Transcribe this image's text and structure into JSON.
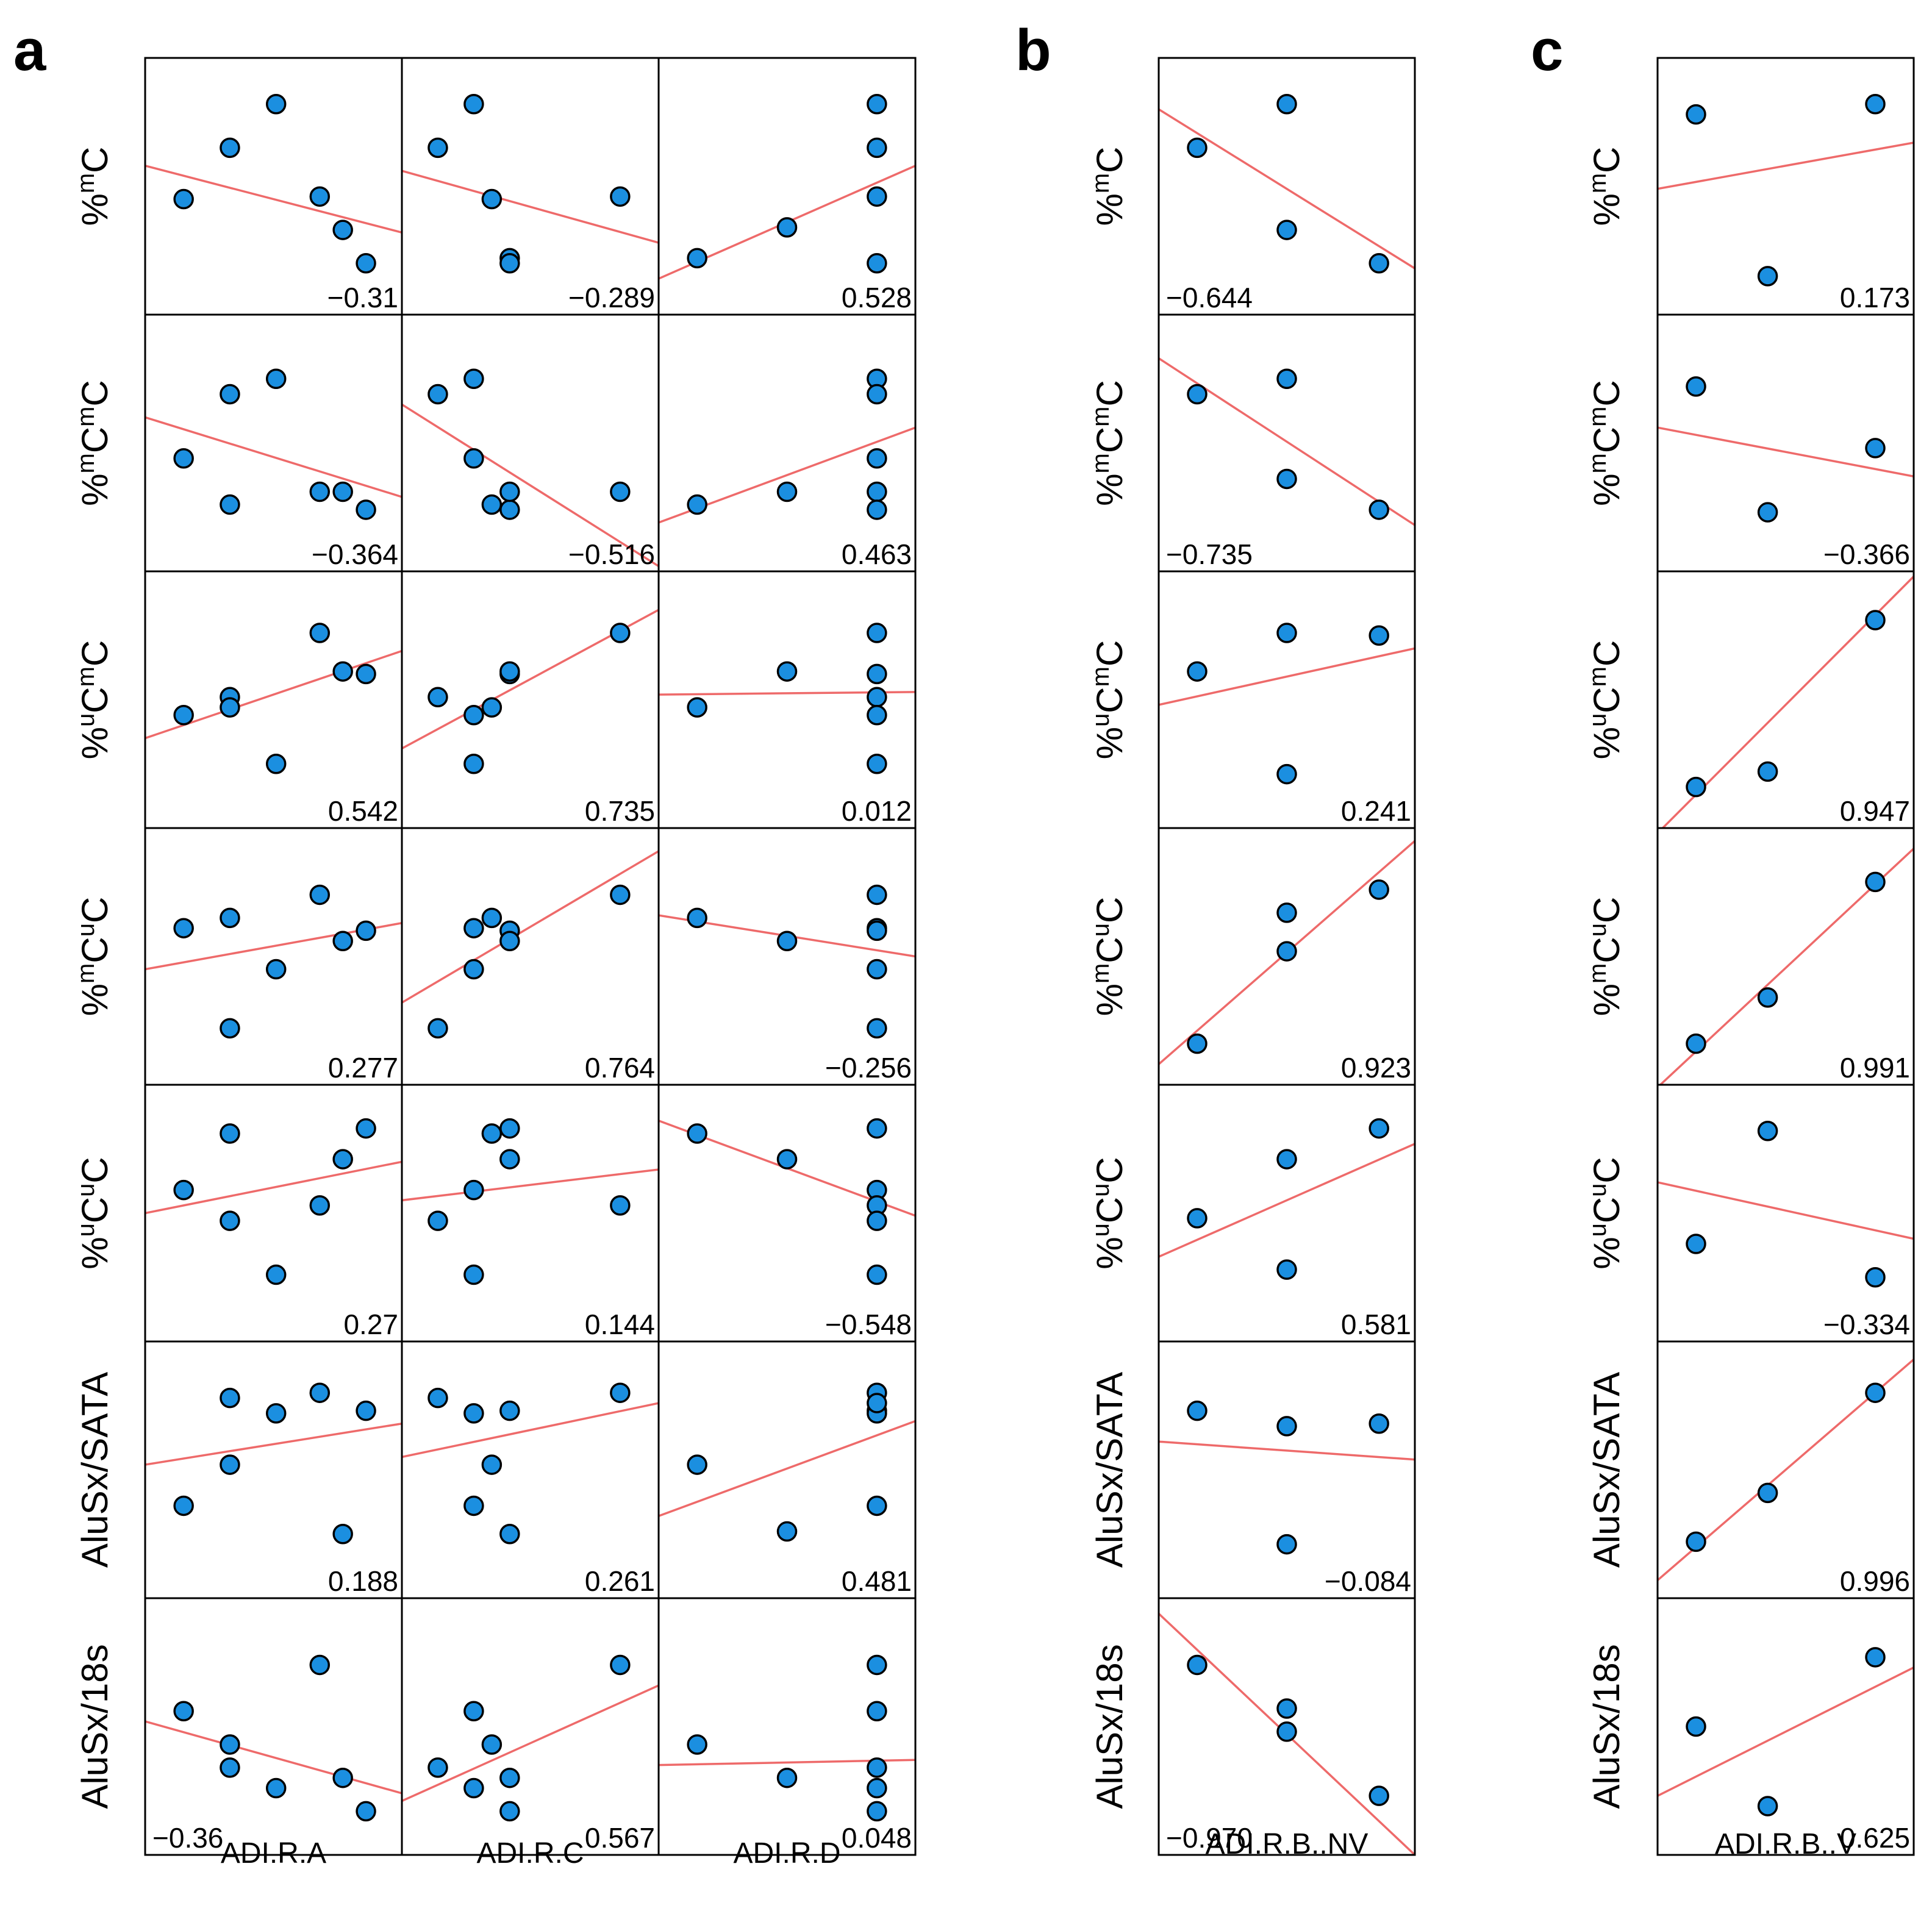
{
  "panels": [
    {
      "letter": "a",
      "columns": [
        "ADI.R.A",
        "ADI.R.C",
        "ADI.R.D"
      ]
    },
    {
      "letter": "b",
      "columns": [
        "ADI.R.B..NV"
      ]
    },
    {
      "letter": "c",
      "columns": [
        "ADI.R.B..V"
      ]
    }
  ],
  "rows": [
    {
      "base": [
        "%",
        "m",
        "C"
      ]
    },
    {
      "base": [
        "%",
        "m",
        "C",
        "m",
        "C"
      ]
    },
    {
      "base": [
        "%",
        "u",
        "C",
        "m",
        "C"
      ]
    },
    {
      "base": [
        "%",
        "m",
        "C",
        "u",
        "C"
      ]
    },
    {
      "base": [
        "%",
        "u",
        "C",
        "u",
        "C"
      ]
    },
    {
      "base": [
        "AluSx/SATA"
      ]
    },
    {
      "base": [
        "AluSx/18s"
      ]
    }
  ],
  "chart_data": {
    "type": "scatter",
    "description_units": "normalized axes 0-1 within each cell",
    "colors": {
      "point": "#1b8fe0",
      "fit_line": "#ee6a6a",
      "frame": "#000000"
    },
    "xlim": [
      0,
      1
    ],
    "ylim": [
      0,
      1
    ],
    "cells": [
      {
        "panel": 0,
        "col": 0,
        "row": 0,
        "corr": "−0.31",
        "corr_pos": "right",
        "x": [
          0.15,
          0.33,
          0.51,
          0.68,
          0.77,
          0.86
        ],
        "y": [
          0.45,
          0.65,
          0.82,
          0.46,
          0.33,
          0.2
        ],
        "line": [
          0.58,
          0.32
        ]
      },
      {
        "panel": 0,
        "col": 1,
        "row": 0,
        "corr": "−0.289",
        "corr_pos": "right",
        "x": [
          0.14,
          0.28,
          0.35,
          0.42,
          0.42,
          0.85
        ],
        "y": [
          0.65,
          0.82,
          0.45,
          0.22,
          0.2,
          0.46
        ],
        "line": [
          0.56,
          0.28
        ]
      },
      {
        "panel": 0,
        "col": 2,
        "row": 0,
        "corr": "0.528",
        "corr_pos": "right",
        "x": [
          0.15,
          0.5,
          0.85,
          0.85,
          0.85,
          0.85
        ],
        "y": [
          0.22,
          0.34,
          0.82,
          0.65,
          0.46,
          0.2
        ],
        "line": [
          0.14,
          0.58
        ]
      },
      {
        "panel": 0,
        "col": 0,
        "row": 1,
        "corr": "−0.364",
        "corr_pos": "right",
        "x": [
          0.15,
          0.33,
          0.51,
          0.68,
          0.77,
          0.86,
          0.33
        ],
        "y": [
          0.44,
          0.69,
          0.75,
          0.31,
          0.31,
          0.24,
          0.26
        ],
        "line": [
          0.6,
          0.29
        ]
      },
      {
        "panel": 0,
        "col": 1,
        "row": 1,
        "corr": "−0.516",
        "corr_pos": "right",
        "x": [
          0.14,
          0.28,
          0.28,
          0.35,
          0.42,
          0.42,
          0.85
        ],
        "y": [
          0.69,
          0.75,
          0.44,
          0.26,
          0.24,
          0.31,
          0.31
        ],
        "line": [
          0.65,
          0.02
        ]
      },
      {
        "panel": 0,
        "col": 2,
        "row": 1,
        "corr": "0.463",
        "corr_pos": "right",
        "x": [
          0.15,
          0.5,
          0.85,
          0.85,
          0.85,
          0.85,
          0.85
        ],
        "y": [
          0.26,
          0.31,
          0.75,
          0.69,
          0.44,
          0.31,
          0.24
        ],
        "line": [
          0.19,
          0.56
        ]
      },
      {
        "panel": 0,
        "col": 0,
        "row": 2,
        "corr": "0.542",
        "corr_pos": "right",
        "x": [
          0.15,
          0.33,
          0.33,
          0.51,
          0.68,
          0.77,
          0.86
        ],
        "y": [
          0.44,
          0.51,
          0.47,
          0.25,
          0.76,
          0.61,
          0.6
        ],
        "line": [
          0.35,
          0.69
        ]
      },
      {
        "panel": 0,
        "col": 1,
        "row": 2,
        "corr": "0.735",
        "corr_pos": "right",
        "x": [
          0.14,
          0.28,
          0.28,
          0.35,
          0.42,
          0.42,
          0.85
        ],
        "y": [
          0.51,
          0.44,
          0.25,
          0.47,
          0.6,
          0.61,
          0.76
        ],
        "line": [
          0.31,
          0.85
        ]
      },
      {
        "panel": 0,
        "col": 2,
        "row": 2,
        "corr": "0.012",
        "corr_pos": "right",
        "x": [
          0.15,
          0.5,
          0.85,
          0.85,
          0.85,
          0.85,
          0.85
        ],
        "y": [
          0.47,
          0.61,
          0.76,
          0.6,
          0.51,
          0.44,
          0.25
        ],
        "line": [
          0.52,
          0.53
        ]
      },
      {
        "panel": 0,
        "col": 0,
        "row": 3,
        "corr": "0.277",
        "corr_pos": "right",
        "x": [
          0.15,
          0.33,
          0.33,
          0.51,
          0.68,
          0.77,
          0.86
        ],
        "y": [
          0.61,
          0.65,
          0.22,
          0.45,
          0.74,
          0.56,
          0.6
        ],
        "line": [
          0.45,
          0.63
        ]
      },
      {
        "panel": 0,
        "col": 1,
        "row": 3,
        "corr": "0.764",
        "corr_pos": "right",
        "x": [
          0.14,
          0.28,
          0.28,
          0.35,
          0.42,
          0.42,
          0.85
        ],
        "y": [
          0.22,
          0.61,
          0.45,
          0.65,
          0.6,
          0.56,
          0.74
        ],
        "line": [
          0.32,
          0.91
        ]
      },
      {
        "panel": 0,
        "col": 2,
        "row": 3,
        "corr": "−0.256",
        "corr_pos": "right",
        "x": [
          0.15,
          0.5,
          0.85,
          0.85,
          0.85,
          0.85,
          0.85
        ],
        "y": [
          0.65,
          0.56,
          0.74,
          0.61,
          0.6,
          0.45,
          0.22
        ],
        "line": [
          0.66,
          0.5
        ]
      },
      {
        "panel": 0,
        "col": 0,
        "row": 4,
        "corr": "0.27",
        "corr_pos": "right",
        "x": [
          0.15,
          0.33,
          0.33,
          0.51,
          0.68,
          0.77,
          0.86
        ],
        "y": [
          0.59,
          0.81,
          0.47,
          0.26,
          0.53,
          0.71,
          0.83
        ],
        "line": [
          0.5,
          0.7
        ]
      },
      {
        "panel": 0,
        "col": 1,
        "row": 4,
        "corr": "0.144",
        "corr_pos": "right",
        "x": [
          0.14,
          0.28,
          0.28,
          0.35,
          0.42,
          0.42,
          0.85
        ],
        "y": [
          0.47,
          0.59,
          0.26,
          0.81,
          0.83,
          0.71,
          0.53
        ],
        "line": [
          0.55,
          0.67
        ]
      },
      {
        "panel": 0,
        "col": 2,
        "row": 4,
        "corr": "−0.548",
        "corr_pos": "right",
        "x": [
          0.15,
          0.5,
          0.85,
          0.85,
          0.85,
          0.85,
          0.85
        ],
        "y": [
          0.81,
          0.71,
          0.83,
          0.59,
          0.53,
          0.47,
          0.26
        ],
        "line": [
          0.86,
          0.49
        ]
      },
      {
        "panel": 0,
        "col": 0,
        "row": 5,
        "corr": "0.188",
        "corr_pos": "right",
        "x": [
          0.15,
          0.33,
          0.33,
          0.51,
          0.68,
          0.77,
          0.86
        ],
        "y": [
          0.36,
          0.52,
          0.78,
          0.72,
          0.8,
          0.25,
          0.73
        ],
        "line": [
          0.52,
          0.68
        ]
      },
      {
        "panel": 0,
        "col": 1,
        "row": 5,
        "corr": "0.261",
        "corr_pos": "right",
        "x": [
          0.14,
          0.28,
          0.28,
          0.35,
          0.42,
          0.42,
          0.85
        ],
        "y": [
          0.78,
          0.72,
          0.36,
          0.52,
          0.25,
          0.73,
          0.8
        ],
        "line": [
          0.55,
          0.76
        ]
      },
      {
        "panel": 0,
        "col": 2,
        "row": 5,
        "corr": "0.481",
        "corr_pos": "right",
        "x": [
          0.15,
          0.5,
          0.85,
          0.85,
          0.85,
          0.85,
          0.85
        ],
        "y": [
          0.52,
          0.26,
          0.8,
          0.73,
          0.72,
          0.36,
          0.76
        ],
        "line": [
          0.32,
          0.69
        ]
      },
      {
        "panel": 0,
        "col": 0,
        "row": 6,
        "corr": "−0.36",
        "corr_pos": "left",
        "x": [
          0.15,
          0.33,
          0.33,
          0.51,
          0.68,
          0.77,
          0.86
        ],
        "y": [
          0.56,
          0.43,
          0.34,
          0.26,
          0.74,
          0.3,
          0.17
        ],
        "line": [
          0.52,
          0.24
        ]
      },
      {
        "panel": 0,
        "col": 1,
        "row": 6,
        "corr": "0.567",
        "corr_pos": "right",
        "x": [
          0.14,
          0.28,
          0.28,
          0.35,
          0.42,
          0.42,
          0.85
        ],
        "y": [
          0.34,
          0.56,
          0.26,
          0.43,
          0.3,
          0.17,
          0.74
        ],
        "line": [
          0.21,
          0.66
        ]
      },
      {
        "panel": 0,
        "col": 2,
        "row": 6,
        "corr": "0.048",
        "corr_pos": "right",
        "x": [
          0.15,
          0.5,
          0.85,
          0.85,
          0.85,
          0.85,
          0.85
        ],
        "y": [
          0.43,
          0.3,
          0.74,
          0.56,
          0.34,
          0.26,
          0.17
        ],
        "line": [
          0.35,
          0.37
        ]
      },
      {
        "panel": 1,
        "col": 0,
        "row": 0,
        "corr": "−0.644",
        "corr_pos": "left",
        "x": [
          0.15,
          0.5,
          0.5,
          0.86
        ],
        "y": [
          0.65,
          0.82,
          0.33,
          0.2
        ],
        "line": [
          0.8,
          0.18
        ]
      },
      {
        "panel": 1,
        "col": 0,
        "row": 1,
        "corr": "−0.735",
        "corr_pos": "left",
        "x": [
          0.15,
          0.5,
          0.5,
          0.86
        ],
        "y": [
          0.69,
          0.75,
          0.36,
          0.24
        ],
        "line": [
          0.83,
          0.18
        ]
      },
      {
        "panel": 1,
        "col": 0,
        "row": 2,
        "corr": "0.241",
        "corr_pos": "right",
        "x": [
          0.15,
          0.5,
          0.5,
          0.86
        ],
        "y": [
          0.61,
          0.76,
          0.21,
          0.75
        ],
        "line": [
          0.48,
          0.7
        ]
      },
      {
        "panel": 1,
        "col": 0,
        "row": 3,
        "corr": "0.923",
        "corr_pos": "right",
        "x": [
          0.15,
          0.5,
          0.5,
          0.86
        ],
        "y": [
          0.16,
          0.67,
          0.52,
          0.76
        ],
        "line": [
          0.08,
          0.95
        ]
      },
      {
        "panel": 1,
        "col": 0,
        "row": 4,
        "corr": "0.581",
        "corr_pos": "right",
        "x": [
          0.15,
          0.5,
          0.5,
          0.86
        ],
        "y": [
          0.48,
          0.71,
          0.28,
          0.83
        ],
        "line": [
          0.33,
          0.77
        ]
      },
      {
        "panel": 1,
        "col": 0,
        "row": 5,
        "corr": "−0.084",
        "corr_pos": "right",
        "x": [
          0.15,
          0.5,
          0.5,
          0.86
        ],
        "y": [
          0.73,
          0.67,
          0.21,
          0.68
        ],
        "line": [
          0.61,
          0.54
        ]
      },
      {
        "panel": 1,
        "col": 0,
        "row": 6,
        "corr": "−0.970",
        "corr_pos": "left",
        "x": [
          0.15,
          0.5,
          0.5,
          0.86
        ],
        "y": [
          0.74,
          0.57,
          0.48,
          0.23
        ],
        "line": [
          0.94,
          0.0
        ]
      },
      {
        "panel": 2,
        "col": 0,
        "row": 0,
        "corr": "0.173",
        "corr_pos": "right",
        "x": [
          0.15,
          0.43,
          0.85
        ],
        "y": [
          0.78,
          0.15,
          0.82
        ],
        "line": [
          0.49,
          0.67
        ]
      },
      {
        "panel": 2,
        "col": 0,
        "row": 1,
        "corr": "−0.366",
        "corr_pos": "right",
        "x": [
          0.15,
          0.43,
          0.85
        ],
        "y": [
          0.72,
          0.23,
          0.48
        ],
        "line": [
          0.56,
          0.37
        ]
      },
      {
        "panel": 2,
        "col": 0,
        "row": 2,
        "corr": "0.947",
        "corr_pos": "right",
        "x": [
          0.15,
          0.43,
          0.85
        ],
        "y": [
          0.16,
          0.22,
          0.81
        ],
        "line": [
          -0.02,
          0.98
        ]
      },
      {
        "panel": 2,
        "col": 0,
        "row": 3,
        "corr": "0.991",
        "corr_pos": "right",
        "x": [
          0.15,
          0.43,
          0.85
        ],
        "y": [
          0.16,
          0.34,
          0.79
        ],
        "line": [
          -0.01,
          0.92
        ]
      },
      {
        "panel": 2,
        "col": 0,
        "row": 4,
        "corr": "−0.334",
        "corr_pos": "right",
        "x": [
          0.15,
          0.43,
          0.85
        ],
        "y": [
          0.38,
          0.82,
          0.25
        ],
        "line": [
          0.62,
          0.4
        ]
      },
      {
        "panel": 2,
        "col": 0,
        "row": 5,
        "corr": "0.996",
        "corr_pos": "right",
        "x": [
          0.15,
          0.43,
          0.85
        ],
        "y": [
          0.22,
          0.41,
          0.8
        ],
        "line": [
          0.07,
          0.93
        ]
      },
      {
        "panel": 2,
        "col": 0,
        "row": 6,
        "corr": "0.625",
        "corr_pos": "right",
        "x": [
          0.15,
          0.43,
          0.85
        ],
        "y": [
          0.5,
          0.19,
          0.77
        ],
        "line": [
          0.23,
          0.73
        ]
      }
    ]
  }
}
